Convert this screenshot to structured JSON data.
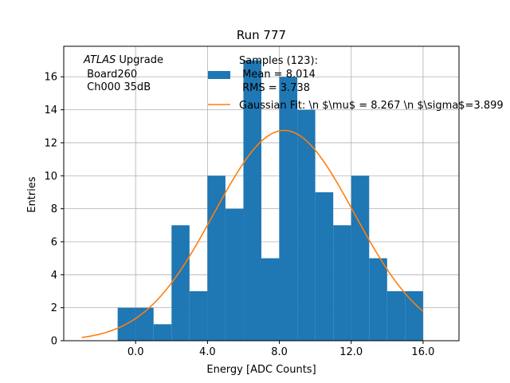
{
  "chart_data": {
    "type": "bar",
    "title": "Run 777",
    "xlabel": "Energy [ADC Counts]",
    "ylabel": "Entries",
    "xlim": [
      -4.0,
      18.0
    ],
    "ylim": [
      0,
      17.85
    ],
    "grid": true,
    "x_ticks": [
      {
        "value": 0.0,
        "label": "0.0"
      },
      {
        "value": 4.0,
        "label": "4.0"
      },
      {
        "value": 8.0,
        "label": "8.0"
      },
      {
        "value": 12.0,
        "label": "12.0"
      },
      {
        "value": 16.0,
        "label": "16.0"
      }
    ],
    "y_ticks": [
      {
        "value": 0,
        "label": "0"
      },
      {
        "value": 2,
        "label": "2"
      },
      {
        "value": 4,
        "label": "4"
      },
      {
        "value": 6,
        "label": "6"
      },
      {
        "value": 8,
        "label": "8"
      },
      {
        "value": 10,
        "label": "10"
      },
      {
        "value": 12,
        "label": "12"
      },
      {
        "value": 14,
        "label": "14"
      },
      {
        "value": 16,
        "label": "16"
      }
    ],
    "histogram": {
      "bin_edges": [
        -1.0,
        0.0,
        1.0,
        2.0,
        3.0,
        4.0,
        5.0,
        6.0,
        7.0,
        8.0,
        9.0,
        10.0,
        11.0,
        12.0,
        13.0,
        14.0,
        15.0,
        16.0
      ],
      "counts": [
        2,
        2,
        1,
        7,
        3,
        10,
        8,
        17,
        5,
        16,
        14,
        9,
        7,
        10,
        5,
        3,
        3
      ],
      "color": "#1f77b4"
    },
    "gaussian_fit": {
      "amplitude": 12.75,
      "mu": 8.267,
      "sigma": 3.899,
      "x_range": [
        -3.0,
        16.0
      ],
      "color": "#ff7f0e"
    },
    "legend_entries": [
      {
        "kind": "patch",
        "lines": [
          "Samples (123):",
          " Mean = 8.014",
          " RMS = 3.738"
        ]
      },
      {
        "kind": "line",
        "lines": [
          "Gaussian Fit: \\n $\\mu$ = 8.267 \\n $\\sigma$=3.899"
        ]
      }
    ],
    "legend_location": "upper-right",
    "annotation": {
      "italic": "ATLAS",
      "rest": " Upgrade",
      "line2": " Board260",
      "line3": " Ch000 35dB"
    }
  }
}
